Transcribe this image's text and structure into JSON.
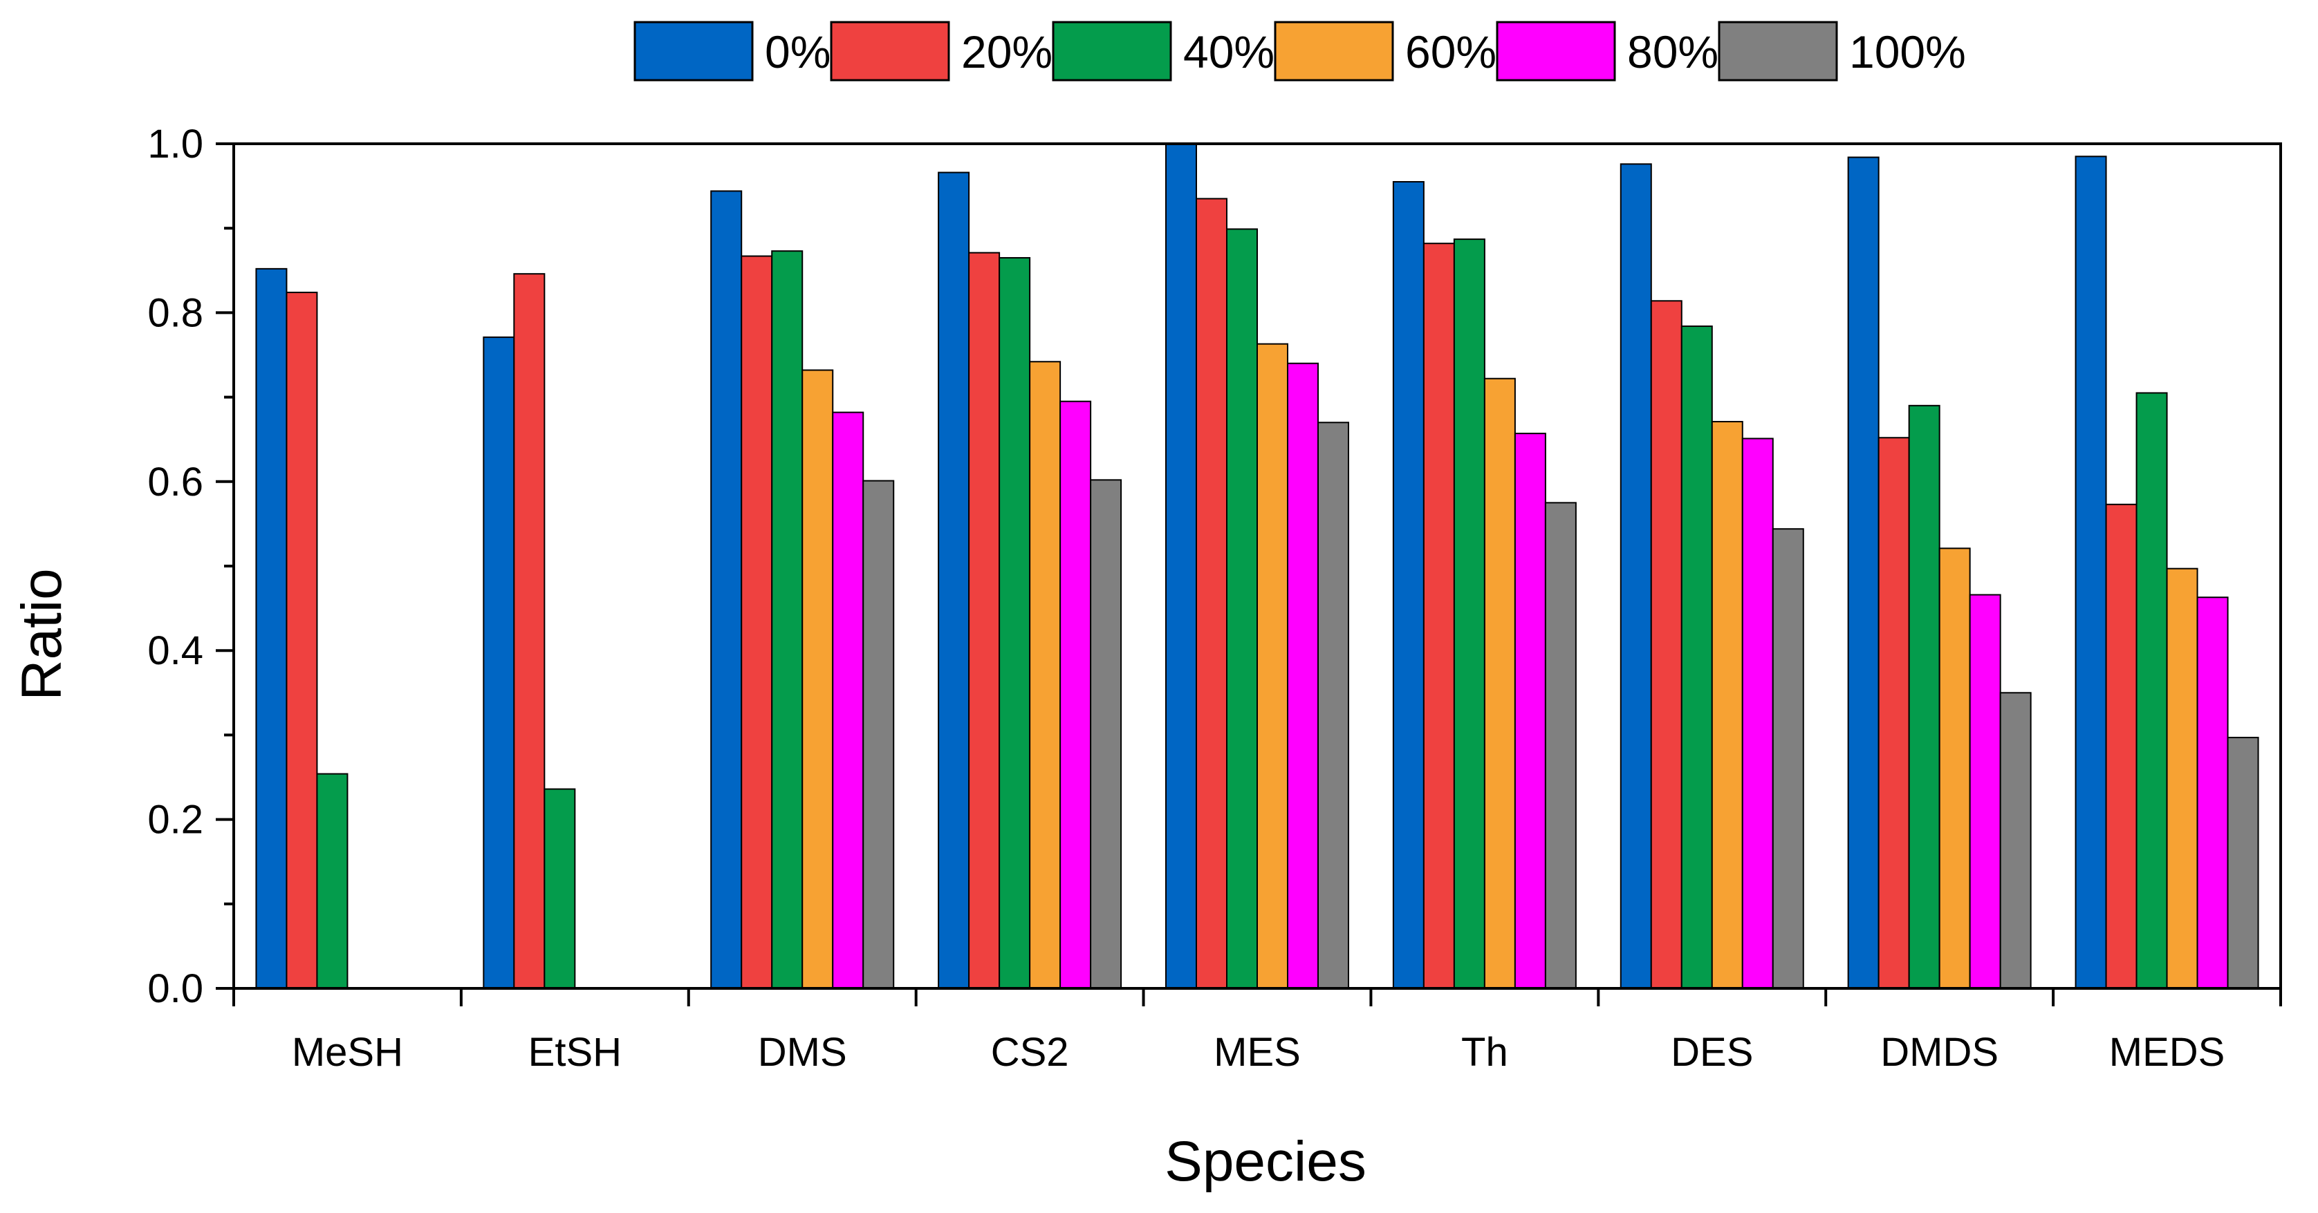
{
  "chart_data": {
    "type": "bar",
    "title": "",
    "xlabel": "Species",
    "ylabel": "Ratio",
    "ylim": [
      0,
      1.0
    ],
    "yticks": [
      "0.0",
      "0.2",
      "0.4",
      "0.6",
      "0.8",
      "1.0"
    ],
    "grid": false,
    "legend_position": "top",
    "categories": [
      "MeSH",
      "EtSH",
      "DMS",
      "CS2",
      "MES",
      "Th",
      "DES",
      "DMDS",
      "MEDS"
    ],
    "series": [
      {
        "name": "0%",
        "color": "#0066c4",
        "values": [
          0.852,
          0.771,
          0.944,
          0.966,
          1.0,
          0.955,
          0.976,
          0.984,
          0.985
        ]
      },
      {
        "name": "20%",
        "color": "#ef4140",
        "values": [
          0.824,
          0.846,
          0.867,
          0.871,
          0.935,
          0.882,
          0.814,
          0.652,
          0.573
        ]
      },
      {
        "name": "40%",
        "color": "#049c4c",
        "values": [
          0.254,
          0.236,
          0.873,
          0.865,
          0.899,
          0.887,
          0.784,
          0.69,
          0.705
        ]
      },
      {
        "name": "60%",
        "color": "#f7a233",
        "values": [
          null,
          null,
          0.732,
          0.742,
          0.763,
          0.722,
          0.671,
          0.521,
          0.497
        ]
      },
      {
        "name": "80%",
        "color": "#ff00ff",
        "values": [
          null,
          null,
          0.682,
          0.695,
          0.74,
          0.657,
          0.651,
          0.466,
          0.463
        ]
      },
      {
        "name": "100%",
        "color": "#808080",
        "values": [
          null,
          null,
          0.601,
          0.602,
          0.67,
          0.575,
          0.544,
          0.35,
          0.297
        ]
      }
    ]
  }
}
